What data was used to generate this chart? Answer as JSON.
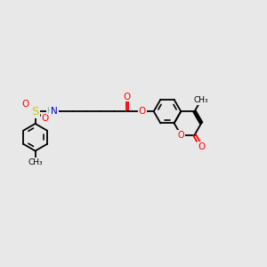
{
  "background_color": "#e8e8e8",
  "line_color": "#000000",
  "bond_lw": 1.3,
  "fig_size": [
    3.0,
    3.0
  ],
  "dpi": 100,
  "colors": {
    "O": "#ff0000",
    "N": "#0000cd",
    "S": "#cccc00",
    "H": "#7ab0b0",
    "C": "#000000"
  },
  "xlim": [
    0,
    14
  ],
  "ylim": [
    0,
    10
  ]
}
